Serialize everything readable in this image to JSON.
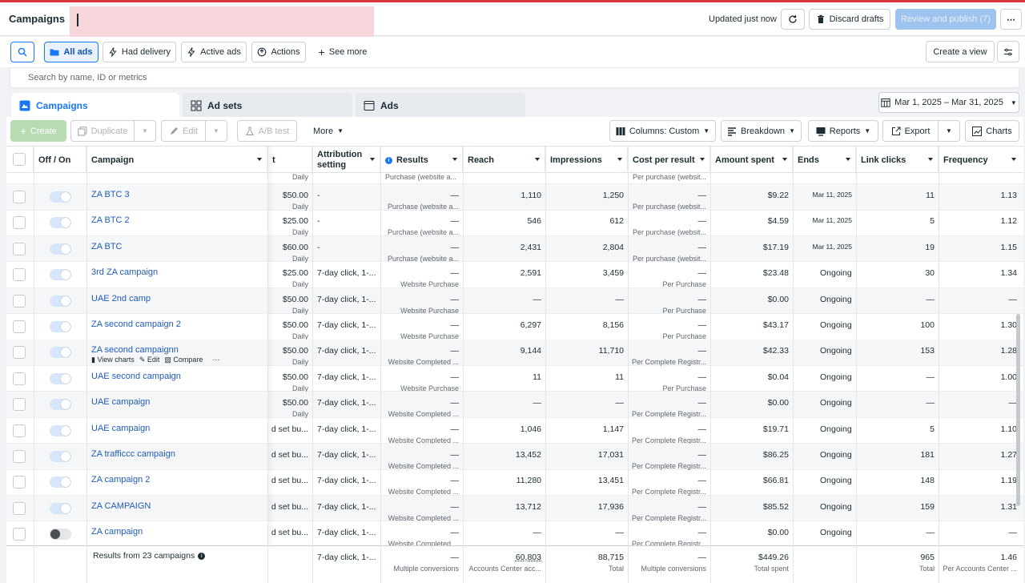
{
  "header": {
    "title": "Campaigns",
    "updated": "Updated just now",
    "discard": "Discard drafts",
    "review": "Review and publish (7)"
  },
  "filters": {
    "all_ads": "All ads",
    "had_delivery": "Had delivery",
    "active_ads": "Active ads",
    "actions": "Actions",
    "see_more": "See more",
    "create_view": "Create a view"
  },
  "search": {
    "placeholder": "Search by name, ID or metrics"
  },
  "tabs": [
    {
      "label": "Campaigns"
    },
    {
      "label": "Ad sets"
    },
    {
      "label": "Ads"
    }
  ],
  "date_range": "Mar 1, 2025 – Mar 31, 2025",
  "toolbar": {
    "create": "Create",
    "duplicate": "Duplicate",
    "edit": "Edit",
    "ab_test": "A/B test",
    "more": "More",
    "columns": "Columns: Custom",
    "breakdown": "Breakdown",
    "reports": "Reports",
    "export": "Export",
    "charts": "Charts"
  },
  "columns": {
    "offon": "Off / On",
    "campaign": "Campaign",
    "budget_tail": "t",
    "attribution": "Attribution setting",
    "results": "Results",
    "reach": "Reach",
    "impressions": "Impressions",
    "cpr": "Cost per result",
    "spent": "Amount spent",
    "ends": "Ends",
    "link_clicks": "Link clicks",
    "frequency": "Frequency"
  },
  "partial_row": {
    "budget_sub": "Daily",
    "results_sub": "Purchase (website a...",
    "cpr_sub": "Per purchase (websit..."
  },
  "row_actions": {
    "view_charts": "View charts",
    "edit": "Edit",
    "compare": "Compare",
    "more": "⋯"
  },
  "rows": [
    {
      "name": "ZA BTC 3",
      "on": true,
      "budget": "$50.00",
      "budget_sub": "Daily",
      "attr": "-",
      "results": "—",
      "results_sub": "Purchase (website a...",
      "reach": "1,110",
      "impr": "1,250",
      "cpr": "—",
      "cpr_sub": "Per purchase (websit...",
      "spent": "$9.22",
      "ends": "Mar 11, 2025",
      "clicks": "11",
      "freq": "1.13"
    },
    {
      "name": "ZA BTC 2",
      "on": true,
      "budget": "$25.00",
      "budget_sub": "Daily",
      "attr": "-",
      "results": "—",
      "results_sub": "Purchase (website a...",
      "reach": "546",
      "impr": "612",
      "cpr": "—",
      "cpr_sub": "Per purchase (websit...",
      "spent": "$4.59",
      "ends": "Mar 11, 2025",
      "clicks": "5",
      "freq": "1.12"
    },
    {
      "name": "ZA BTC",
      "on": true,
      "budget": "$60.00",
      "budget_sub": "Daily",
      "attr": "-",
      "results": "—",
      "results_sub": "Purchase (website a...",
      "reach": "2,431",
      "impr": "2,804",
      "cpr": "—",
      "cpr_sub": "Per purchase (websit...",
      "spent": "$17.19",
      "ends": "Mar 11, 2025",
      "clicks": "19",
      "freq": "1.15"
    },
    {
      "name": "3rd ZA campaign",
      "on": true,
      "budget": "$25.00",
      "budget_sub": "Daily",
      "attr": "7-day click, 1-...",
      "results": "—",
      "results_sub": "Website Purchase",
      "reach": "2,591",
      "impr": "3,459",
      "cpr": "—",
      "cpr_sub": "Per Purchase",
      "spent": "$23.48",
      "ends": "Ongoing",
      "clicks": "30",
      "freq": "1.34"
    },
    {
      "name": "UAE 2nd camp",
      "on": true,
      "budget": "$50.00",
      "budget_sub": "Daily",
      "attr": "7-day click, 1-...",
      "results": "—",
      "results_sub": "Website Purchase",
      "reach": "—",
      "impr": "—",
      "cpr": "—",
      "cpr_sub": "Per Purchase",
      "spent": "$0.00",
      "ends": "Ongoing",
      "clicks": "—",
      "freq": "—"
    },
    {
      "name": "ZA second campaign 2",
      "on": true,
      "budget": "$50.00",
      "budget_sub": "Daily",
      "attr": "7-day click, 1-...",
      "results": "—",
      "results_sub": "Website Purchase",
      "reach": "6,297",
      "impr": "8,156",
      "cpr": "—",
      "cpr_sub": "Per Purchase",
      "spent": "$43.17",
      "ends": "Ongoing",
      "clicks": "100",
      "freq": "1.30"
    },
    {
      "name": "ZA second campaignn",
      "on": true,
      "budget": "$50.00",
      "budget_sub": "Daily",
      "attr": "7-day click, 1-...",
      "results": "—",
      "results_sub": "Website Completed ...",
      "reach": "9,144",
      "impr": "11,710",
      "cpr": "—",
      "cpr_sub": "Per Complete Registr...",
      "spent": "$42.33",
      "ends": "Ongoing",
      "clicks": "153",
      "freq": "1.28",
      "hover": true
    },
    {
      "name": "UAE second campaign",
      "on": true,
      "budget": "$50.00",
      "budget_sub": "Daily",
      "attr": "7-day click, 1-...",
      "results": "—",
      "results_sub": "Website Purchase",
      "reach": "11",
      "impr": "11",
      "cpr": "—",
      "cpr_sub": "Per Purchase",
      "spent": "$0.04",
      "ends": "Ongoing",
      "clicks": "—",
      "freq": "1.00"
    },
    {
      "name": "UAE campaign",
      "on": true,
      "budget": "$50.00",
      "budget_sub": "Daily",
      "attr": "7-day click, 1-...",
      "results": "—",
      "results_sub": "Website Completed ...",
      "reach": "—",
      "impr": "—",
      "cpr": "—",
      "cpr_sub": "Per Complete Registr...",
      "spent": "$0.00",
      "ends": "Ongoing",
      "clicks": "—",
      "freq": "—"
    },
    {
      "name": "UAE campaign",
      "on": true,
      "budget": "d set bu...",
      "budget_sub": "",
      "attr": "7-day click, 1-...",
      "results": "—",
      "results_sub": "Website Completed ...",
      "reach": "1,046",
      "impr": "1,147",
      "cpr": "—",
      "cpr_sub": "Per Complete Registr...",
      "spent": "$19.71",
      "ends": "Ongoing",
      "clicks": "5",
      "freq": "1.10"
    },
    {
      "name": "ZA trafficcc campaign",
      "on": true,
      "budget": "d set bu...",
      "budget_sub": "",
      "attr": "7-day click, 1-...",
      "results": "—",
      "results_sub": "Website Completed ...",
      "reach": "13,452",
      "impr": "17,031",
      "cpr": "—",
      "cpr_sub": "Per Complete Registr...",
      "spent": "$86.25",
      "ends": "Ongoing",
      "clicks": "181",
      "freq": "1.27"
    },
    {
      "name": "ZA campaign 2",
      "on": true,
      "budget": "d set bu...",
      "budget_sub": "",
      "attr": "7-day click, 1-...",
      "results": "—",
      "results_sub": "Website Completed ...",
      "reach": "11,280",
      "impr": "13,451",
      "cpr": "—",
      "cpr_sub": "Per Complete Registr...",
      "spent": "$66.81",
      "ends": "Ongoing",
      "clicks": "148",
      "freq": "1.19"
    },
    {
      "name": "ZA CAMPAIGN",
      "on": true,
      "budget": "d set bu...",
      "budget_sub": "",
      "attr": "7-day click, 1-...",
      "results": "—",
      "results_sub": "Website Completed ...",
      "reach": "13,712",
      "impr": "17,936",
      "cpr": "—",
      "cpr_sub": "Per Complete Registr...",
      "spent": "$85.52",
      "ends": "Ongoing",
      "clicks": "159",
      "freq": "1.31"
    },
    {
      "name": "ZA campaign",
      "on": false,
      "budget": "d set bu...",
      "budget_sub": "",
      "attr": "7-day click, 1-...",
      "results": "—",
      "results_sub": "Website Completed ...",
      "reach": "—",
      "impr": "—",
      "cpr": "—",
      "cpr_sub": "Per Complete Registr...",
      "spent": "$0.00",
      "ends": "Ongoing",
      "clicks": "—",
      "freq": "—"
    }
  ],
  "footer": {
    "label": "Results from 23 campaigns",
    "attr": "7-day click, 1-...",
    "results": "—",
    "results_sub": "Multiple conversions",
    "reach": "60,803",
    "reach_sub": "Accounts Center acc...",
    "impr": "88,715",
    "impr_sub": "Total",
    "cpr": "—",
    "cpr_sub": "Multiple conversions",
    "spent": "$449.26",
    "spent_sub": "Total spent",
    "clicks": "965",
    "clicks_sub": "Total",
    "freq": "1.46",
    "freq_sub": "Per Accounts Center ..."
  }
}
